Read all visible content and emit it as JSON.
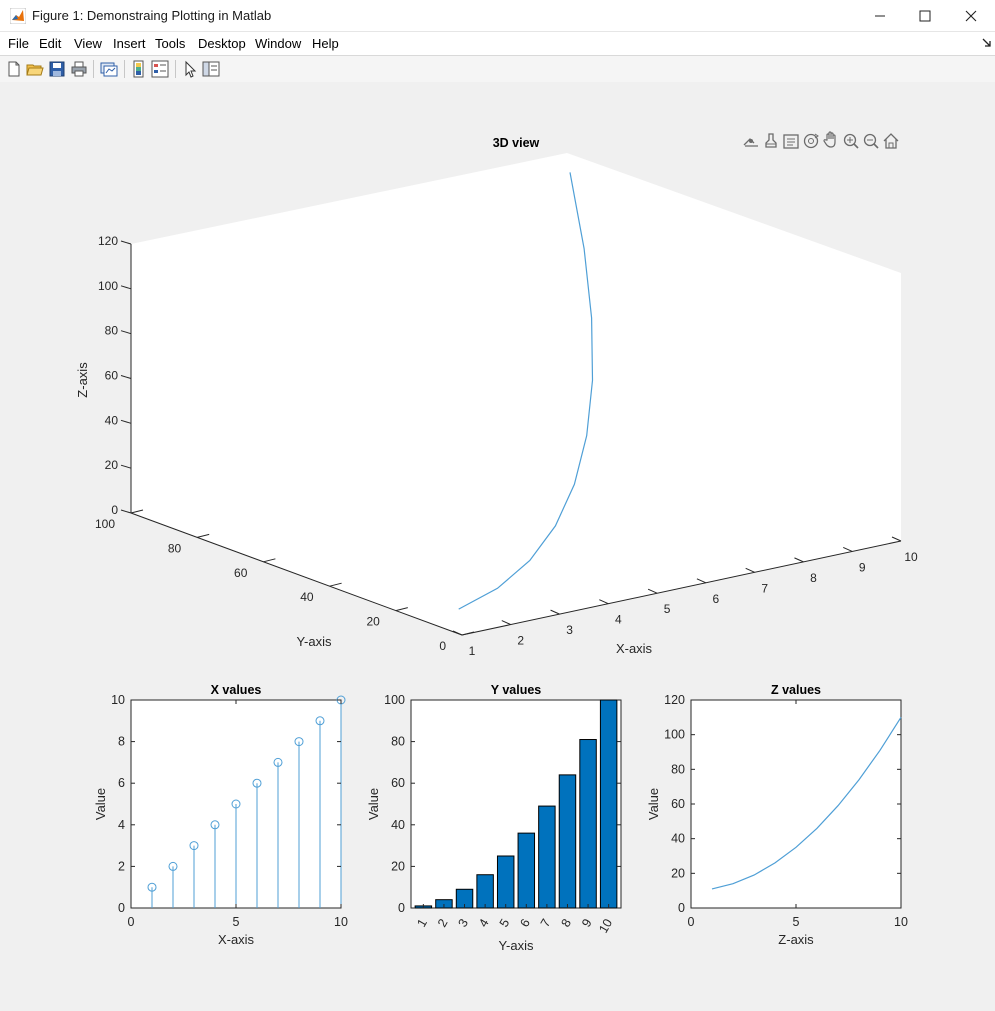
{
  "window": {
    "title": "Figure 1: Demonstraing Plotting in Matlab",
    "controls": [
      "minimize-icon",
      "maximize-icon",
      "close-icon"
    ]
  },
  "menu": [
    "File",
    "Edit",
    "View",
    "Insert",
    "Tools",
    "Desktop",
    "Window",
    "Help"
  ],
  "toolbar": [
    "new-figure-icon",
    "open-file-icon",
    "save-icon",
    "print-icon",
    "link-plot-icon",
    "insert-colorbar-icon",
    "insert-legend-icon",
    "edit-plot-arrow-icon",
    "property-inspector-icon"
  ],
  "axes_toolbar": [
    "data-tips-icon",
    "brush-icon",
    "restore-view-icon",
    "rotate-3d-icon",
    "pan-icon",
    "zoom-in-icon",
    "zoom-out-icon",
    "home-icon"
  ],
  "colors": {
    "line": "#4f9fd6",
    "bar": "#0072bd",
    "axis": "#262626",
    "figure_bg": "#f0f0f0"
  },
  "chart_data": [
    {
      "type": "line",
      "projection": "3d",
      "title": "3D view",
      "xlabel": "X-axis",
      "ylabel": "Y-axis",
      "zlabel": "Z-axis",
      "xlim": [
        1,
        10
      ],
      "ylim": [
        0,
        100
      ],
      "zlim": [
        0,
        120
      ],
      "xticks": [
        "1",
        "2",
        "3",
        "4",
        "5",
        "6",
        "7",
        "8",
        "9",
        "10"
      ],
      "yticks": [
        "0",
        "20",
        "40",
        "60",
        "80",
        "100"
      ],
      "zticks": [
        "0",
        "20",
        "40",
        "60",
        "80",
        "100",
        "120"
      ],
      "x": [
        1,
        2,
        3,
        4,
        5,
        6,
        7,
        8,
        9,
        10
      ],
      "y": [
        1,
        4,
        9,
        16,
        25,
        36,
        49,
        64,
        81,
        100
      ],
      "z": [
        11,
        14,
        19,
        26,
        35,
        46,
        59,
        74,
        91,
        110
      ],
      "grid": false
    },
    {
      "type": "stem",
      "title": "X values",
      "xlabel": "X-axis",
      "ylabel": "Value",
      "xlim": [
        0,
        10
      ],
      "ylim": [
        0,
        10
      ],
      "xticks": [
        "0",
        "5",
        "10"
      ],
      "yticks": [
        "0",
        "2",
        "4",
        "6",
        "8",
        "10"
      ],
      "x": [
        1,
        2,
        3,
        4,
        5,
        6,
        7,
        8,
        9,
        10
      ],
      "values": [
        1,
        2,
        3,
        4,
        5,
        6,
        7,
        8,
        9,
        10
      ]
    },
    {
      "type": "bar",
      "title": "Y values",
      "xlabel": "Y-axis",
      "ylabel": "Value",
      "ylim": [
        0,
        100
      ],
      "categories": [
        "1",
        "2",
        "3",
        "4",
        "5",
        "6",
        "7",
        "8",
        "9",
        "10"
      ],
      "yticks": [
        "0",
        "20",
        "40",
        "60",
        "80",
        "100"
      ],
      "values": [
        1,
        4,
        9,
        16,
        25,
        36,
        49,
        64,
        81,
        100
      ]
    },
    {
      "type": "line",
      "title": "Z values",
      "xlabel": "Z-axis",
      "ylabel": "Value",
      "xlim": [
        0,
        10
      ],
      "ylim": [
        0,
        120
      ],
      "xticks": [
        "0",
        "5",
        "10"
      ],
      "yticks": [
        "0",
        "20",
        "40",
        "60",
        "80",
        "100",
        "120"
      ],
      "x": [
        1,
        2,
        3,
        4,
        5,
        6,
        7,
        8,
        9,
        10
      ],
      "values": [
        11,
        14,
        19,
        26,
        35,
        46,
        59,
        74,
        91,
        110
      ]
    }
  ]
}
